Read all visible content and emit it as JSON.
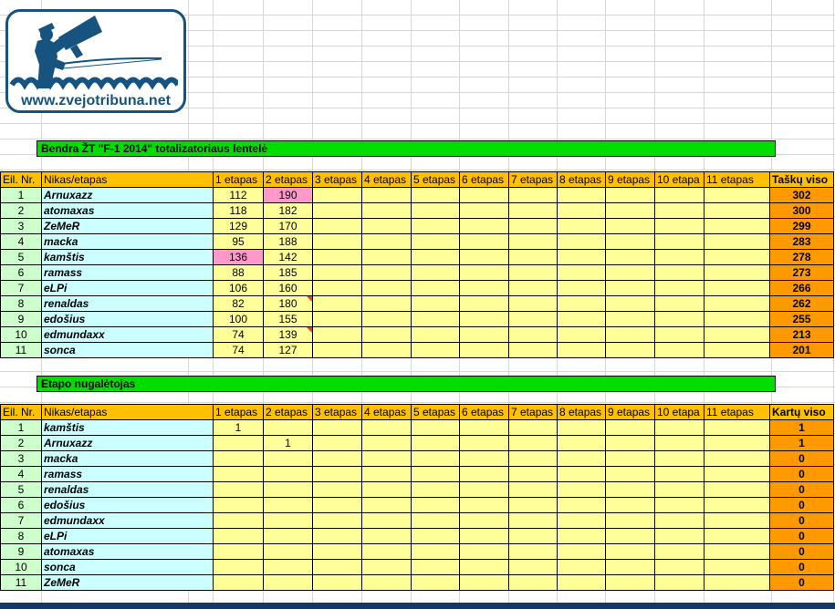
{
  "logo": {
    "url_text": "www.zvejotribuna.net"
  },
  "colors": {
    "logo_blue": "#17537F",
    "section_bar_green": "#00DE00",
    "header_gold": "#FFC000",
    "row_number_green": "#CCFFCC",
    "nick_cyan": "#CCFFFF",
    "stage_yellow": "#FFFF99",
    "total_orange": "#FF9900",
    "highlight_pink": "#FF99CC",
    "comment_red": "#EE3A22"
  },
  "section1": {
    "title": "Bendra ŽT \"F-1 2014\" totalizatoriaus lentelė",
    "table": {
      "headers": [
        "Eil. Nr.",
        "Nikas/etapas",
        "1 etapas",
        "2 etapas",
        "3 etapas",
        "4 etapas",
        "5 etapas",
        "6 etapas",
        "7 etapas",
        "8 etapas",
        "9 etapas",
        "10 etapa",
        "11 etapas",
        "Taškų viso"
      ],
      "rows": [
        {
          "nr": "1",
          "nick": "Arnuxazz",
          "stages": [
            "112",
            "190",
            "",
            "",
            "",
            "",
            "",
            "",
            "",
            "",
            ""
          ],
          "total": "302",
          "pink": [
            2
          ],
          "comments": []
        },
        {
          "nr": "2",
          "nick": "atomaxas",
          "stages": [
            "118",
            "182",
            "",
            "",
            "",
            "",
            "",
            "",
            "",
            "",
            ""
          ],
          "total": "300",
          "pink": [],
          "comments": []
        },
        {
          "nr": "3",
          "nick": "ZeMeR",
          "stages": [
            "129",
            "170",
            "",
            "",
            "",
            "",
            "",
            "",
            "",
            "",
            ""
          ],
          "total": "299",
          "pink": [],
          "comments": []
        },
        {
          "nr": "4",
          "nick": "macka",
          "stages": [
            "95",
            "188",
            "",
            "",
            "",
            "",
            "",
            "",
            "",
            "",
            ""
          ],
          "total": "283",
          "pink": [],
          "comments": []
        },
        {
          "nr": "5",
          "nick": "kamštis",
          "stages": [
            "136",
            "142",
            "",
            "",
            "",
            "",
            "",
            "",
            "",
            "",
            ""
          ],
          "total": "278",
          "pink": [
            1
          ],
          "comments": []
        },
        {
          "nr": "6",
          "nick": "ramass",
          "stages": [
            "88",
            "185",
            "",
            "",
            "",
            "",
            "",
            "",
            "",
            "",
            ""
          ],
          "total": "273",
          "pink": [],
          "comments": []
        },
        {
          "nr": "7",
          "nick": "eLPi",
          "stages": [
            "106",
            "160",
            "",
            "",
            "",
            "",
            "",
            "",
            "",
            "",
            ""
          ],
          "total": "266",
          "pink": [],
          "comments": []
        },
        {
          "nr": "8",
          "nick": "renaldas",
          "stages": [
            "82",
            "180",
            "",
            "",
            "",
            "",
            "",
            "",
            "",
            "",
            ""
          ],
          "total": "262",
          "pink": [],
          "comments": [
            2
          ]
        },
        {
          "nr": "9",
          "nick": "edošius",
          "stages": [
            "100",
            "155",
            "",
            "",
            "",
            "",
            "",
            "",
            "",
            "",
            ""
          ],
          "total": "255",
          "pink": [],
          "comments": []
        },
        {
          "nr": "10",
          "nick": "edmundaxx",
          "stages": [
            "74",
            "139",
            "",
            "",
            "",
            "",
            "",
            "",
            "",
            "",
            ""
          ],
          "total": "213",
          "pink": [],
          "comments": [
            2
          ]
        },
        {
          "nr": "11",
          "nick": "sonca",
          "stages": [
            "74",
            "127",
            "",
            "",
            "",
            "",
            "",
            "",
            "",
            "",
            ""
          ],
          "total": "201",
          "pink": [],
          "comments": []
        }
      ]
    }
  },
  "section2": {
    "title": "Etapo nugalėtojas",
    "table": {
      "headers": [
        "Eil. Nr.",
        "Nikas/etapas",
        "1 etapas",
        "2 etapas",
        "3 etapas",
        "4 etapas",
        "5 etapas",
        "6 etapas",
        "7 etapas",
        "8 etapas",
        "9 etapas",
        "10 etapa",
        "11 etapas",
        "Kartų viso"
      ],
      "rows": [
        {
          "nr": "1",
          "nick": "kamštis",
          "stages": [
            "1",
            "",
            "",
            "",
            "",
            "",
            "",
            "",
            "",
            "",
            ""
          ],
          "total": "1",
          "pink": [],
          "comments": []
        },
        {
          "nr": "2",
          "nick": "Arnuxazz",
          "stages": [
            "",
            "1",
            "",
            "",
            "",
            "",
            "",
            "",
            "",
            "",
            ""
          ],
          "total": "1",
          "pink": [],
          "comments": []
        },
        {
          "nr": "3",
          "nick": "macka",
          "stages": [
            "",
            "",
            "",
            "",
            "",
            "",
            "",
            "",
            "",
            "",
            ""
          ],
          "total": "0",
          "pink": [],
          "comments": []
        },
        {
          "nr": "4",
          "nick": "ramass",
          "stages": [
            "",
            "",
            "",
            "",
            "",
            "",
            "",
            "",
            "",
            "",
            ""
          ],
          "total": "0",
          "pink": [],
          "comments": []
        },
        {
          "nr": "5",
          "nick": "renaldas",
          "stages": [
            "",
            "",
            "",
            "",
            "",
            "",
            "",
            "",
            "",
            "",
            ""
          ],
          "total": "0",
          "pink": [],
          "comments": []
        },
        {
          "nr": "6",
          "nick": "edošius",
          "stages": [
            "",
            "",
            "",
            "",
            "",
            "",
            "",
            "",
            "",
            "",
            ""
          ],
          "total": "0",
          "pink": [],
          "comments": []
        },
        {
          "nr": "7",
          "nick": "edmundaxx",
          "stages": [
            "",
            "",
            "",
            "",
            "",
            "",
            "",
            "",
            "",
            "",
            ""
          ],
          "total": "0",
          "pink": [],
          "comments": []
        },
        {
          "nr": "8",
          "nick": "eLPi",
          "stages": [
            "",
            "",
            "",
            "",
            "",
            "",
            "",
            "",
            "",
            "",
            ""
          ],
          "total": "0",
          "pink": [],
          "comments": []
        },
        {
          "nr": "9",
          "nick": "atomaxas",
          "stages": [
            "",
            "",
            "",
            "",
            "",
            "",
            "",
            "",
            "",
            "",
            ""
          ],
          "total": "0",
          "pink": [],
          "comments": []
        },
        {
          "nr": "10",
          "nick": "sonca",
          "stages": [
            "",
            "",
            "",
            "",
            "",
            "",
            "",
            "",
            "",
            "",
            ""
          ],
          "total": "0",
          "pink": [],
          "comments": []
        },
        {
          "nr": "11",
          "nick": "ZeMeR",
          "stages": [
            "",
            "",
            "",
            "",
            "",
            "",
            "",
            "",
            "",
            "",
            ""
          ],
          "total": "0",
          "pink": [],
          "comments": []
        }
      ]
    }
  }
}
